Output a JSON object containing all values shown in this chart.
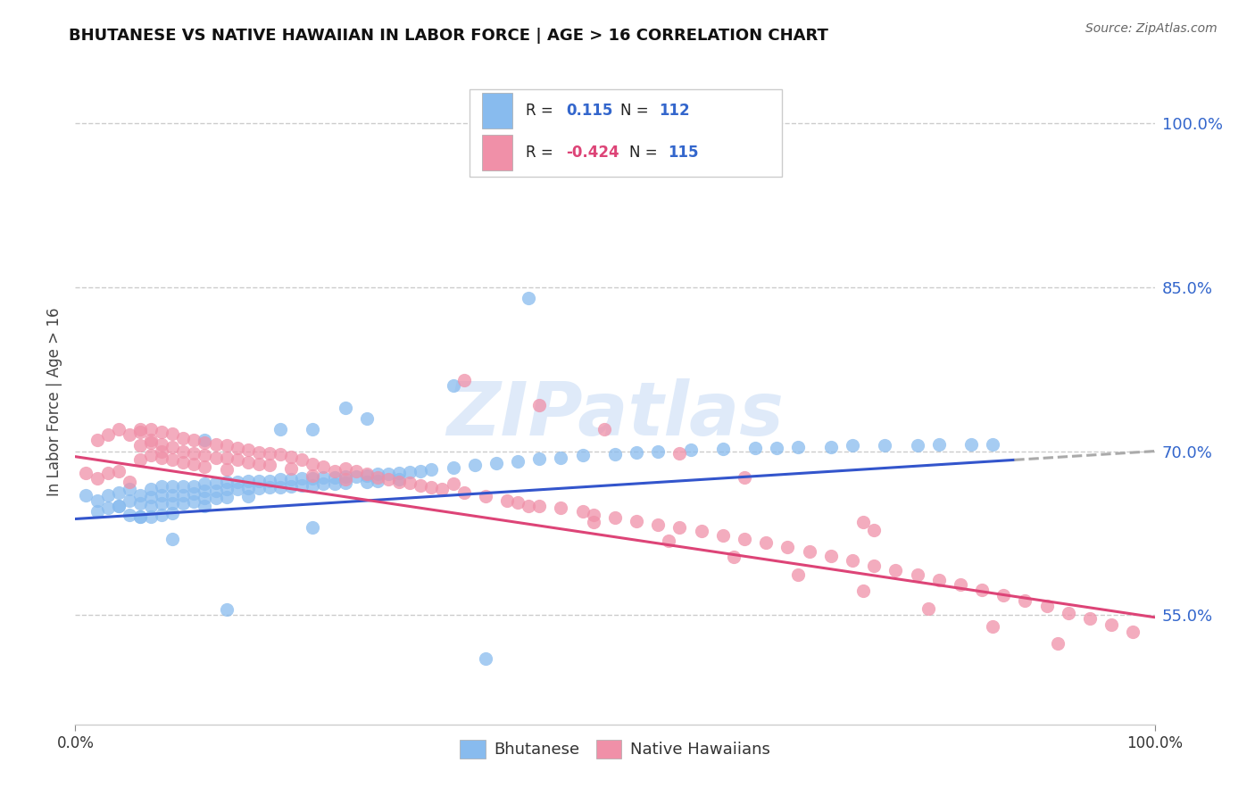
{
  "title": "BHUTANESE VS NATIVE HAWAIIAN IN LABOR FORCE | AGE > 16 CORRELATION CHART",
  "source": "Source: ZipAtlas.com",
  "ylabel": "In Labor Force | Age > 16",
  "y_tick_labels": [
    "55.0%",
    "70.0%",
    "85.0%",
    "100.0%"
  ],
  "y_tick_positions": [
    0.55,
    0.7,
    0.85,
    1.0
  ],
  "x_range": [
    0.0,
    1.0
  ],
  "y_range": [
    0.45,
    1.04
  ],
  "bhutanese_color": "#88bbee",
  "native_hawaiian_color": "#f090a8",
  "blue_line_color": "#3355cc",
  "pink_line_color": "#dd4477",
  "dashed_line_color": "#aaaaaa",
  "watermark": "ZIPatlas",
  "grid_color": "#cccccc",
  "grid_style": "--",
  "blue_line_start_x": 0.0,
  "blue_line_start_y": 0.638,
  "blue_line_end_x": 0.87,
  "blue_line_end_y": 0.692,
  "dashed_line_start_x": 0.87,
  "dashed_line_start_y": 0.692,
  "dashed_line_end_x": 1.0,
  "dashed_line_end_y": 0.7,
  "pink_line_start_x": 0.0,
  "pink_line_start_y": 0.695,
  "pink_line_end_x": 1.0,
  "pink_line_end_y": 0.548,
  "bhutanese_x": [
    0.01,
    0.02,
    0.02,
    0.03,
    0.03,
    0.04,
    0.04,
    0.05,
    0.05,
    0.05,
    0.06,
    0.06,
    0.06,
    0.07,
    0.07,
    0.07,
    0.07,
    0.08,
    0.08,
    0.08,
    0.08,
    0.09,
    0.09,
    0.09,
    0.09,
    0.1,
    0.1,
    0.1,
    0.11,
    0.11,
    0.11,
    0.12,
    0.12,
    0.12,
    0.12,
    0.13,
    0.13,
    0.13,
    0.14,
    0.14,
    0.14,
    0.15,
    0.15,
    0.16,
    0.16,
    0.16,
    0.17,
    0.17,
    0.18,
    0.18,
    0.19,
    0.19,
    0.2,
    0.2,
    0.21,
    0.21,
    0.22,
    0.22,
    0.23,
    0.23,
    0.24,
    0.24,
    0.25,
    0.25,
    0.26,
    0.27,
    0.27,
    0.28,
    0.28,
    0.29,
    0.3,
    0.3,
    0.31,
    0.32,
    0.33,
    0.35,
    0.37,
    0.39,
    0.41,
    0.43,
    0.45,
    0.47,
    0.5,
    0.52,
    0.54,
    0.57,
    0.6,
    0.63,
    0.65,
    0.67,
    0.7,
    0.72,
    0.75,
    0.78,
    0.8,
    0.83,
    0.85,
    0.22,
    0.27,
    0.35,
    0.42,
    0.38,
    0.22,
    0.14,
    0.09,
    0.06,
    0.04,
    0.12,
    0.19,
    0.25
  ],
  "bhutanese_y": [
    0.66,
    0.655,
    0.645,
    0.66,
    0.648,
    0.662,
    0.65,
    0.665,
    0.655,
    0.642,
    0.66,
    0.652,
    0.64,
    0.665,
    0.658,
    0.65,
    0.64,
    0.668,
    0.66,
    0.652,
    0.642,
    0.668,
    0.66,
    0.652,
    0.643,
    0.668,
    0.66,
    0.652,
    0.668,
    0.661,
    0.654,
    0.67,
    0.664,
    0.657,
    0.65,
    0.671,
    0.664,
    0.657,
    0.672,
    0.665,
    0.658,
    0.672,
    0.665,
    0.673,
    0.666,
    0.659,
    0.673,
    0.666,
    0.673,
    0.667,
    0.674,
    0.667,
    0.674,
    0.668,
    0.675,
    0.669,
    0.675,
    0.669,
    0.676,
    0.67,
    0.676,
    0.67,
    0.677,
    0.671,
    0.677,
    0.678,
    0.672,
    0.679,
    0.673,
    0.679,
    0.68,
    0.674,
    0.681,
    0.682,
    0.683,
    0.685,
    0.687,
    0.689,
    0.691,
    0.693,
    0.694,
    0.696,
    0.697,
    0.699,
    0.7,
    0.701,
    0.702,
    0.703,
    0.703,
    0.704,
    0.704,
    0.705,
    0.705,
    0.705,
    0.706,
    0.706,
    0.706,
    0.72,
    0.73,
    0.76,
    0.84,
    0.51,
    0.63,
    0.555,
    0.62,
    0.64,
    0.65,
    0.71,
    0.72,
    0.74
  ],
  "native_hawaiian_x": [
    0.01,
    0.02,
    0.02,
    0.03,
    0.03,
    0.04,
    0.04,
    0.05,
    0.05,
    0.06,
    0.06,
    0.06,
    0.07,
    0.07,
    0.07,
    0.08,
    0.08,
    0.08,
    0.09,
    0.09,
    0.09,
    0.1,
    0.1,
    0.1,
    0.11,
    0.11,
    0.11,
    0.12,
    0.12,
    0.12,
    0.13,
    0.13,
    0.14,
    0.14,
    0.14,
    0.15,
    0.15,
    0.16,
    0.16,
    0.17,
    0.17,
    0.18,
    0.18,
    0.19,
    0.2,
    0.2,
    0.21,
    0.22,
    0.22,
    0.23,
    0.24,
    0.25,
    0.25,
    0.26,
    0.27,
    0.28,
    0.29,
    0.3,
    0.31,
    0.32,
    0.33,
    0.34,
    0.36,
    0.38,
    0.4,
    0.41,
    0.43,
    0.45,
    0.47,
    0.48,
    0.5,
    0.52,
    0.54,
    0.56,
    0.58,
    0.6,
    0.62,
    0.64,
    0.66,
    0.68,
    0.7,
    0.72,
    0.74,
    0.76,
    0.78,
    0.8,
    0.82,
    0.84,
    0.86,
    0.88,
    0.9,
    0.92,
    0.94,
    0.96,
    0.98,
    0.35,
    0.42,
    0.48,
    0.55,
    0.61,
    0.67,
    0.73,
    0.79,
    0.85,
    0.91,
    0.36,
    0.43,
    0.49,
    0.56,
    0.62,
    0.73,
    0.74,
    0.06,
    0.07,
    0.08
  ],
  "native_hawaiian_y": [
    0.68,
    0.71,
    0.675,
    0.715,
    0.68,
    0.72,
    0.682,
    0.715,
    0.672,
    0.718,
    0.705,
    0.692,
    0.72,
    0.708,
    0.696,
    0.718,
    0.706,
    0.694,
    0.716,
    0.704,
    0.692,
    0.712,
    0.7,
    0.69,
    0.71,
    0.698,
    0.688,
    0.708,
    0.696,
    0.686,
    0.706,
    0.694,
    0.705,
    0.694,
    0.683,
    0.703,
    0.692,
    0.701,
    0.69,
    0.699,
    0.688,
    0.698,
    0.687,
    0.697,
    0.695,
    0.684,
    0.692,
    0.688,
    0.678,
    0.686,
    0.682,
    0.684,
    0.674,
    0.682,
    0.679,
    0.676,
    0.674,
    0.672,
    0.671,
    0.669,
    0.667,
    0.665,
    0.662,
    0.659,
    0.655,
    0.653,
    0.65,
    0.648,
    0.645,
    0.642,
    0.639,
    0.636,
    0.633,
    0.63,
    0.627,
    0.623,
    0.62,
    0.616,
    0.612,
    0.608,
    0.604,
    0.6,
    0.595,
    0.591,
    0.587,
    0.582,
    0.578,
    0.573,
    0.568,
    0.563,
    0.558,
    0.552,
    0.547,
    0.541,
    0.535,
    0.67,
    0.65,
    0.635,
    0.618,
    0.603,
    0.587,
    0.572,
    0.556,
    0.54,
    0.524,
    0.765,
    0.742,
    0.72,
    0.698,
    0.676,
    0.635,
    0.628,
    0.72,
    0.71,
    0.7
  ]
}
